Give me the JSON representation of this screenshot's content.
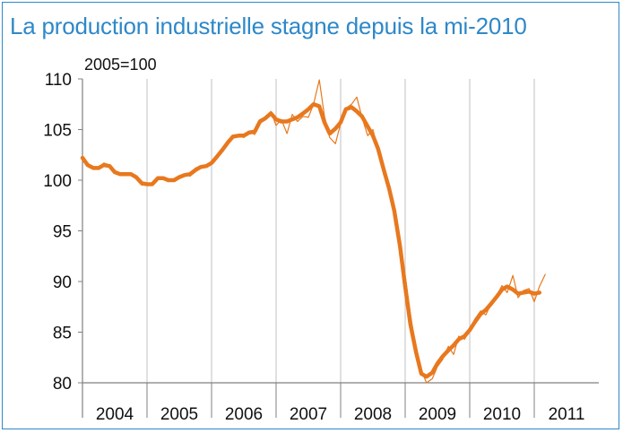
{
  "title": "La production industrielle stagne depuis la mi-2010",
  "colors": {
    "frame": "#2e88c8",
    "title": "#2e88c8",
    "series": "#e8781e",
    "grid": "#c0c0c0",
    "axis": "#808080"
  },
  "chart_data": {
    "type": "line",
    "title": "La production industrielle stagne depuis la mi-2010",
    "unit_label": "2005=100",
    "xlabel": "",
    "ylabel": "",
    "ylim": [
      80,
      110
    ],
    "yticks": [
      80,
      85,
      90,
      95,
      100,
      105,
      110
    ],
    "xlim": [
      2004.0,
      2012.0
    ],
    "categories": [
      "2004",
      "2005",
      "2006",
      "2007",
      "2008",
      "2009",
      "2010",
      "2011"
    ],
    "grid": "vertical",
    "legend": "none",
    "series": [
      {
        "style": "thin",
        "x": [
          2004.0,
          2004.08,
          2004.17,
          2004.25,
          2004.33,
          2004.42,
          2004.5,
          2004.58,
          2004.67,
          2004.75,
          2004.83,
          2004.92,
          2005.0,
          2005.08,
          2005.17,
          2005.25,
          2005.33,
          2005.42,
          2005.5,
          2005.58,
          2005.67,
          2005.75,
          2005.83,
          2005.92,
          2006.0,
          2006.08,
          2006.17,
          2006.25,
          2006.33,
          2006.42,
          2006.5,
          2006.58,
          2006.67,
          2006.75,
          2006.83,
          2006.92,
          2007.0,
          2007.08,
          2007.17,
          2007.25,
          2007.33,
          2007.42,
          2007.5,
          2007.58,
          2007.67,
          2007.75,
          2007.83,
          2007.92,
          2008.0,
          2008.08,
          2008.17,
          2008.25,
          2008.33,
          2008.42,
          2008.5,
          2008.58,
          2008.67,
          2008.75,
          2008.83,
          2008.92,
          2009.0,
          2009.08,
          2009.17,
          2009.25,
          2009.33,
          2009.42,
          2009.5,
          2009.58,
          2009.67,
          2009.75,
          2009.83,
          2009.92,
          2010.0,
          2010.08,
          2010.17,
          2010.25,
          2010.33,
          2010.42,
          2010.5,
          2010.58,
          2010.67,
          2010.75,
          2010.83,
          2010.92,
          2011.0,
          2011.08,
          2011.17
        ],
        "values": [
          102.3,
          101.4,
          101.2,
          101.1,
          101.7,
          101.5,
          100.7,
          100.6,
          100.5,
          100.7,
          100.4,
          99.5,
          99.6,
          99.5,
          100.3,
          100.2,
          100.0,
          99.9,
          100.3,
          100.6,
          100.4,
          101.2,
          101.4,
          101.3,
          101.6,
          102.4,
          103.1,
          103.8,
          104.3,
          104.5,
          104.2,
          104.8,
          104.5,
          106.0,
          106.1,
          106.8,
          105.4,
          106.0,
          104.6,
          106.5,
          105.8,
          106.3,
          106.2,
          107.5,
          109.9,
          106.3,
          104.2,
          103.6,
          105.6,
          107.1,
          107.5,
          108.2,
          106.2,
          104.4,
          105.0,
          103.0,
          100.8,
          99.2,
          97.4,
          93.9,
          90.6,
          86.8,
          83.3,
          81.2,
          80.0,
          80.4,
          81.6,
          82.3,
          83.6,
          82.8,
          84.6,
          84.3,
          85.2,
          86.3,
          87.1,
          86.7,
          87.8,
          88.6,
          89.6,
          88.9,
          90.6,
          88.4,
          89.1,
          89.3,
          88.0,
          89.5,
          90.7
        ]
      },
      {
        "style": "thick",
        "x": [
          2004.0,
          2004.08,
          2004.17,
          2004.25,
          2004.33,
          2004.42,
          2004.5,
          2004.58,
          2004.67,
          2004.75,
          2004.83,
          2004.92,
          2005.0,
          2005.08,
          2005.17,
          2005.25,
          2005.33,
          2005.42,
          2005.5,
          2005.58,
          2005.67,
          2005.75,
          2005.83,
          2005.92,
          2006.0,
          2006.08,
          2006.17,
          2006.25,
          2006.33,
          2006.42,
          2006.5,
          2006.58,
          2006.67,
          2006.75,
          2006.83,
          2006.92,
          2007.0,
          2007.08,
          2007.17,
          2007.25,
          2007.33,
          2007.42,
          2007.5,
          2007.58,
          2007.67,
          2007.75,
          2007.83,
          2007.92,
          2008.0,
          2008.08,
          2008.17,
          2008.25,
          2008.33,
          2008.42,
          2008.5,
          2008.58,
          2008.67,
          2008.75,
          2008.83,
          2008.92,
          2009.0,
          2009.08,
          2009.17,
          2009.25,
          2009.33,
          2009.42,
          2009.5,
          2009.58,
          2009.67,
          2009.75,
          2009.83,
          2009.92,
          2010.0,
          2010.08,
          2010.17,
          2010.25,
          2010.33,
          2010.42,
          2010.5,
          2010.58,
          2010.67,
          2010.75,
          2010.83,
          2010.92,
          2011.0,
          2011.08
        ],
        "values": [
          102.2,
          101.5,
          101.2,
          101.2,
          101.5,
          101.4,
          100.8,
          100.6,
          100.6,
          100.6,
          100.3,
          99.7,
          99.6,
          99.6,
          100.2,
          100.2,
          100.0,
          100.0,
          100.3,
          100.5,
          100.6,
          101.0,
          101.3,
          101.4,
          101.7,
          102.3,
          103.0,
          103.7,
          104.3,
          104.4,
          104.4,
          104.7,
          104.8,
          105.8,
          106.1,
          106.6,
          106.0,
          105.8,
          105.8,
          106.0,
          106.2,
          106.6,
          107.0,
          107.5,
          107.3,
          105.7,
          104.6,
          105.1,
          105.7,
          107.0,
          107.2,
          106.8,
          106.3,
          105.3,
          104.4,
          103.1,
          101.0,
          99.2,
          97.0,
          93.5,
          89.5,
          85.8,
          83.0,
          80.9,
          80.6,
          81.0,
          81.9,
          82.6,
          83.2,
          83.7,
          84.3,
          84.6,
          85.2,
          86.0,
          86.8,
          87.2,
          87.8,
          88.5,
          89.2,
          89.5,
          89.2,
          88.8,
          88.9,
          89.0,
          88.8,
          88.9
        ]
      }
    ]
  }
}
